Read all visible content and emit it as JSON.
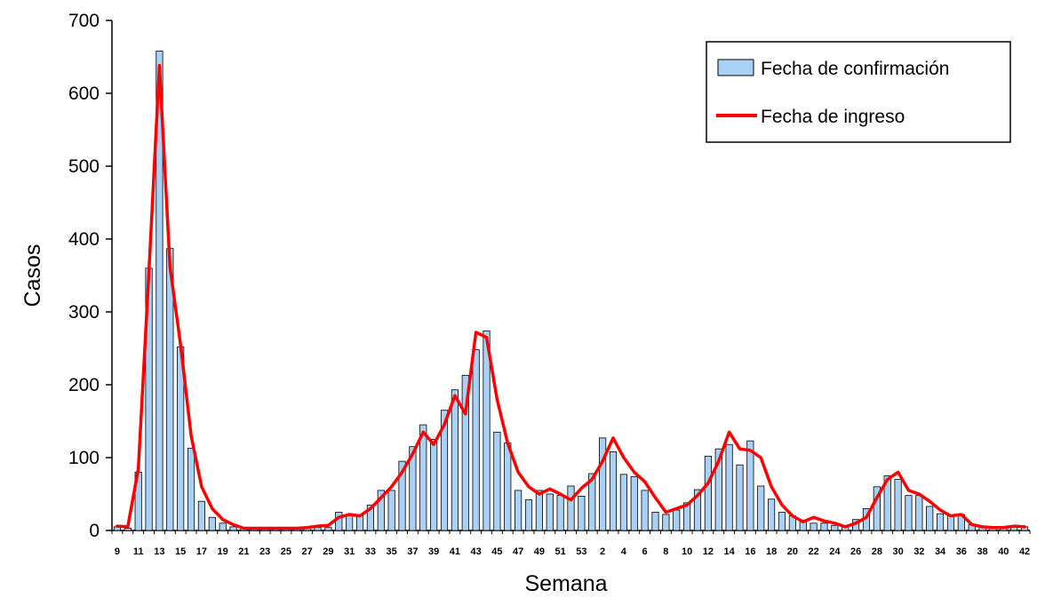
{
  "chart_data": {
    "type": "bar",
    "xlabel": "Semana",
    "ylabel": "Casos",
    "ylim": [
      0,
      700
    ],
    "yticks": [
      0,
      100,
      200,
      300,
      400,
      500,
      600,
      700
    ],
    "grid": false,
    "legend_position": "top-right",
    "categories": [
      "9",
      "10",
      "11",
      "12",
      "13",
      "14",
      "15",
      "16",
      "17",
      "18",
      "19",
      "20",
      "21",
      "22",
      "23",
      "24",
      "25",
      "26",
      "27",
      "28",
      "29",
      "30",
      "31",
      "32",
      "33",
      "34",
      "35",
      "36",
      "37",
      "38",
      "39",
      "40",
      "41",
      "42",
      "43",
      "44",
      "45",
      "46",
      "47",
      "48",
      "49",
      "50",
      "51",
      "52",
      "53",
      "1",
      "2",
      "3",
      "4",
      "5",
      "6",
      "7",
      "8",
      "9",
      "10",
      "11",
      "12",
      "13",
      "14",
      "15",
      "16",
      "17",
      "18",
      "19",
      "20",
      "21",
      "22",
      "23",
      "24",
      "25",
      "26",
      "27",
      "28",
      "29",
      "30",
      "31",
      "32",
      "33",
      "34",
      "35",
      "36",
      "37",
      "38",
      "39",
      "40",
      "41",
      "42"
    ],
    "x_tick_labels_shown": [
      "9",
      "11",
      "13",
      "15",
      "17",
      "19",
      "21",
      "23",
      "25",
      "27",
      "29",
      "31",
      "33",
      "35",
      "37",
      "39",
      "41",
      "43",
      "45",
      "47",
      "49",
      "51",
      "53",
      "2",
      "4",
      "6",
      "8",
      "10",
      "12",
      "14",
      "16",
      "18",
      "20",
      "22",
      "24",
      "26",
      "28",
      "30",
      "32",
      "34",
      "36",
      "38",
      "40",
      "42"
    ],
    "series": [
      {
        "name": "Fecha de confirmación",
        "type": "bar",
        "color": "#a9d1f5",
        "values": [
          5,
          3,
          80,
          360,
          658,
          387,
          252,
          113,
          40,
          18,
          10,
          5,
          3,
          2,
          2,
          2,
          2,
          2,
          3,
          4,
          4,
          25,
          22,
          20,
          35,
          55,
          55,
          95,
          115,
          145,
          125,
          165,
          193,
          213,
          248,
          274,
          135,
          120,
          55,
          42,
          55,
          50,
          48,
          61,
          47,
          78,
          127,
          108,
          77,
          74,
          55,
          25,
          22,
          28,
          38,
          56,
          102,
          112,
          118,
          90,
          123,
          61,
          43,
          25,
          20,
          12,
          10,
          10,
          7,
          5,
          15,
          30,
          60,
          75,
          70,
          48,
          48,
          33,
          23,
          20,
          22,
          8,
          5,
          4,
          3,
          6,
          5
        ]
      },
      {
        "name": "Fecha de ingreso",
        "type": "line",
        "color": "#ff0000",
        "values": [
          6,
          5,
          85,
          355,
          638,
          362,
          255,
          130,
          60,
          30,
          15,
          8,
          3,
          3,
          3,
          3,
          3,
          3,
          4,
          6,
          7,
          18,
          22,
          20,
          30,
          45,
          60,
          80,
          105,
          135,
          118,
          145,
          185,
          160,
          272,
          265,
          180,
          120,
          80,
          60,
          50,
          57,
          50,
          42,
          58,
          70,
          95,
          127,
          100,
          80,
          67,
          45,
          25,
          30,
          35,
          48,
          65,
          95,
          135,
          112,
          110,
          100,
          60,
          35,
          20,
          12,
          18,
          13,
          10,
          5,
          10,
          18,
          45,
          70,
          80,
          55,
          50,
          40,
          28,
          20,
          22,
          8,
          5,
          4,
          4,
          6,
          5
        ]
      }
    ]
  }
}
